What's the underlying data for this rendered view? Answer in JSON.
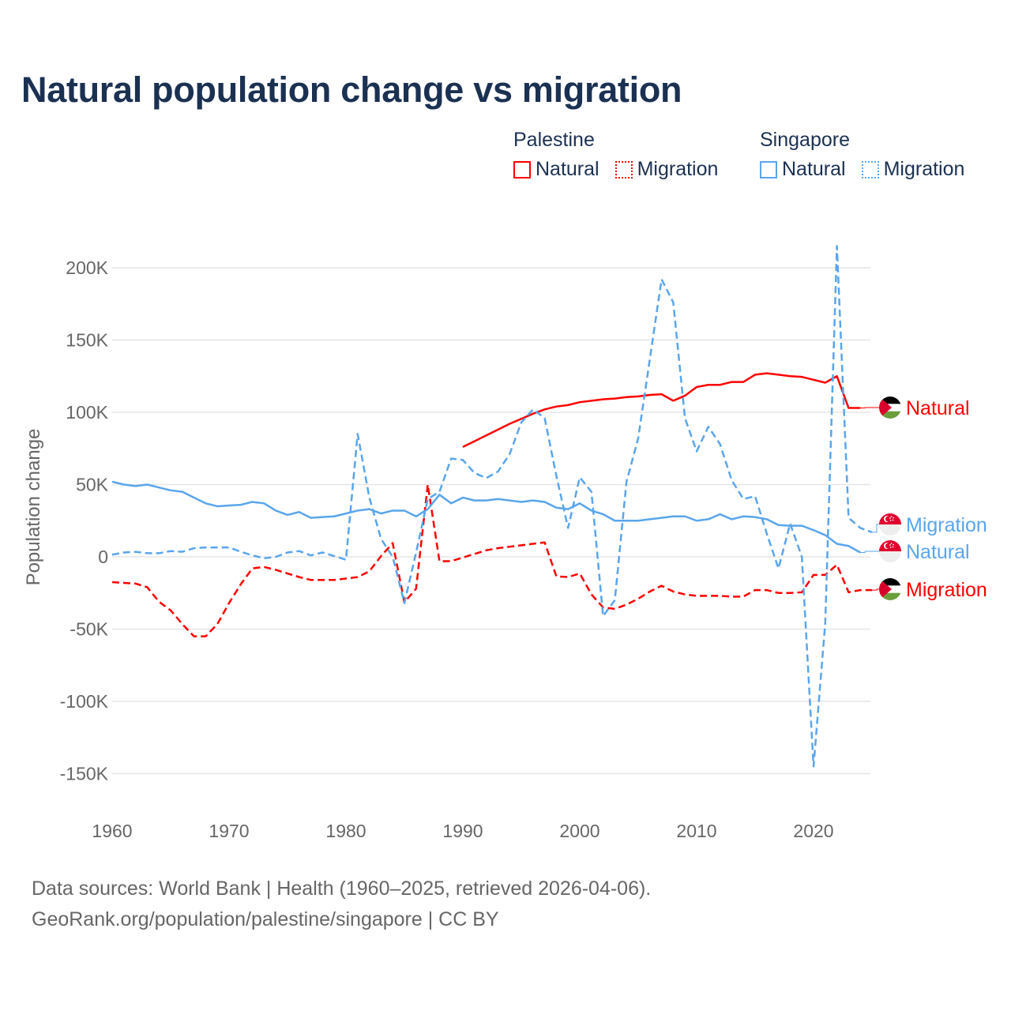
{
  "title": "Natural population change vs migration",
  "legend": [
    {
      "group": "Palestine",
      "items": [
        {
          "label": "Natural",
          "style": "solid",
          "color": "#ff0000"
        },
        {
          "label": "Migration",
          "style": "dotted",
          "color": "#ff0000"
        }
      ]
    },
    {
      "group": "Singapore",
      "items": [
        {
          "label": "Natural",
          "style": "solid",
          "color": "#5aa5ec"
        },
        {
          "label": "Migration",
          "style": "dotted",
          "color": "#5aa5ec"
        }
      ]
    }
  ],
  "footer": {
    "line1": "Data sources: World Bank | Health (1960–2025, retrieved 2026-04-06).",
    "line2": "GeoRank.org/population/palestine/singapore | CC BY"
  },
  "chart_data": {
    "type": "line",
    "title": "Natural population change vs migration",
    "ylabel": "Population change",
    "xlabel": "",
    "xlim": [
      1960,
      2025
    ],
    "ylim": [
      -170000,
      220000
    ],
    "grid": true,
    "legend_position": "top-right",
    "x_ticks": [
      1960,
      1970,
      1980,
      1990,
      2000,
      2010,
      2020
    ],
    "x_tick_labels": [
      "1960",
      "1970",
      "1980",
      "1990",
      "2000",
      "2010",
      "2020"
    ],
    "y_ticks": [
      200000,
      150000,
      100000,
      50000,
      0,
      -50000,
      -100000,
      -150000
    ],
    "y_tick_labels": [
      "200K",
      "150K",
      "100K",
      "50K",
      "0",
      "-50K",
      "-100K",
      "-150K"
    ],
    "series": [
      {
        "name": "Palestine Natural",
        "country": "Palestine",
        "end_label": "Natural",
        "color": "#ff0000",
        "dash": false,
        "start": 1990,
        "values": [
          76,
          80,
          84,
          88,
          92,
          95.5,
          99,
          102,
          104,
          105,
          107,
          108,
          109,
          109.5,
          110.5,
          111,
          112,
          112.5,
          108,
          111.5,
          117.5,
          119,
          119,
          121,
          121,
          126,
          127,
          126,
          125,
          124.5,
          122.5,
          120.5,
          125,
          103,
          103
        ]
      },
      {
        "name": "Palestine Migration",
        "country": "Palestine",
        "end_label": "Migration",
        "color": "#ff0000",
        "dash": true,
        "start": 1960,
        "values": [
          -17.5,
          -18,
          -18.5,
          -21,
          -31,
          -37,
          -46.5,
          -55,
          -55,
          -46.5,
          -32,
          -19,
          -8,
          -7,
          -9,
          -11.5,
          -14,
          -16,
          -16,
          -16,
          -15,
          -14,
          -10,
          0.5,
          9.5,
          -31.5,
          -22,
          50,
          -3,
          -3,
          -0.5,
          2,
          4.5,
          6,
          7,
          8,
          9,
          10,
          -13.5,
          -14,
          -11.5,
          -26,
          -35,
          -36,
          -33,
          -29,
          -24,
          -20,
          -24,
          -26,
          -27,
          -27,
          -27,
          -27.5,
          -27.5,
          -23,
          -23,
          -25,
          -25,
          -24.5,
          -12.5,
          -12.5,
          -5.5,
          -24.5,
          -23,
          -23
        ]
      },
      {
        "name": "Singapore Natural",
        "country": "Singapore",
        "end_label": "Natural",
        "color": "#5aa5ec",
        "dash": false,
        "start": 1960,
        "values": [
          52,
          50,
          49,
          50,
          48,
          46,
          45,
          41,
          37,
          35,
          35.5,
          36,
          38,
          37,
          32,
          29,
          31,
          27,
          27.5,
          28,
          30,
          32,
          33,
          30,
          32,
          32,
          28,
          33,
          43,
          37,
          41,
          39,
          39,
          40,
          39,
          38,
          39,
          38,
          34,
          33,
          37,
          32,
          29.5,
          25,
          25,
          25,
          26,
          27,
          28,
          28,
          25,
          26,
          29.5,
          26,
          28,
          27.5,
          26,
          22,
          21.5,
          21.5,
          18.5,
          15,
          9,
          7.5,
          3
        ]
      },
      {
        "name": "Singapore Migration",
        "country": "Singapore",
        "end_label": "Migration",
        "color": "#5aa5ec",
        "dash": true,
        "start": 1960,
        "values": [
          1.5,
          3,
          3.5,
          2.5,
          2.5,
          4,
          3.5,
          6,
          6.5,
          6.5,
          6.5,
          3.5,
          1,
          -1,
          0,
          3,
          4,
          1,
          3,
          0.5,
          -2,
          85,
          41,
          12.5,
          0,
          -32,
          3,
          40,
          45,
          68,
          67,
          58,
          54.5,
          59,
          71,
          93,
          102,
          96,
          56,
          20,
          55,
          45,
          -41,
          -30,
          52,
          82,
          137,
          192,
          176,
          96,
          73,
          90,
          78,
          53,
          40,
          42,
          16,
          -8,
          23,
          0,
          -145,
          -46,
          215,
          27,
          20,
          17
        ]
      }
    ],
    "value_unit": "thousands"
  }
}
